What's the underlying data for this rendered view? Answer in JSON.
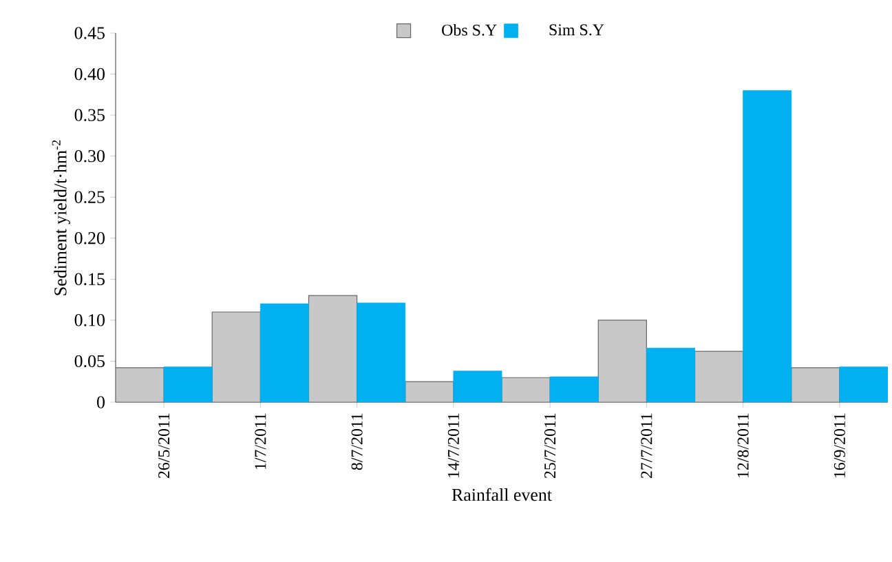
{
  "chart_data": {
    "type": "bar",
    "xlabel": "Rainfall event",
    "ylabel": "Sediment yield/t·hm$^{-2}$",
    "categories": [
      "26/5/2011",
      "1/7/2011",
      "8/7/2011",
      "14/7/2011",
      "25/7/2011",
      "27/7/2011",
      "12/8/2011",
      "16/9/2011"
    ],
    "series": [
      {
        "name": "Obs S.Y",
        "color": "#c8c8c8",
        "values": [
          0.042,
          0.11,
          0.13,
          0.025,
          0.03,
          0.1,
          0.062,
          0.042
        ]
      },
      {
        "name": "Sim S.Y",
        "color": "#00b0f0",
        "values": [
          0.043,
          0.12,
          0.121,
          0.038,
          0.031,
          0.066,
          0.38,
          0.043
        ]
      }
    ],
    "ylim": [
      0,
      0.45
    ],
    "yticks": [
      0,
      {
        "value": 0.05,
        "label": "0.05"
      },
      {
        "value": 0.1,
        "label": "0.10"
      },
      {
        "value": 0.15,
        "label": "0.15"
      },
      {
        "value": 0.2,
        "label": "0.20"
      },
      {
        "value": 0.25,
        "label": "0.25"
      },
      {
        "value": 0.3,
        "label": "0.30"
      },
      {
        "value": 0.35,
        "label": "0.35"
      },
      {
        "value": 0.4,
        "label": "0.40"
      },
      {
        "value": 0.45,
        "label": "0.45"
      }
    ],
    "legend": "top"
  }
}
